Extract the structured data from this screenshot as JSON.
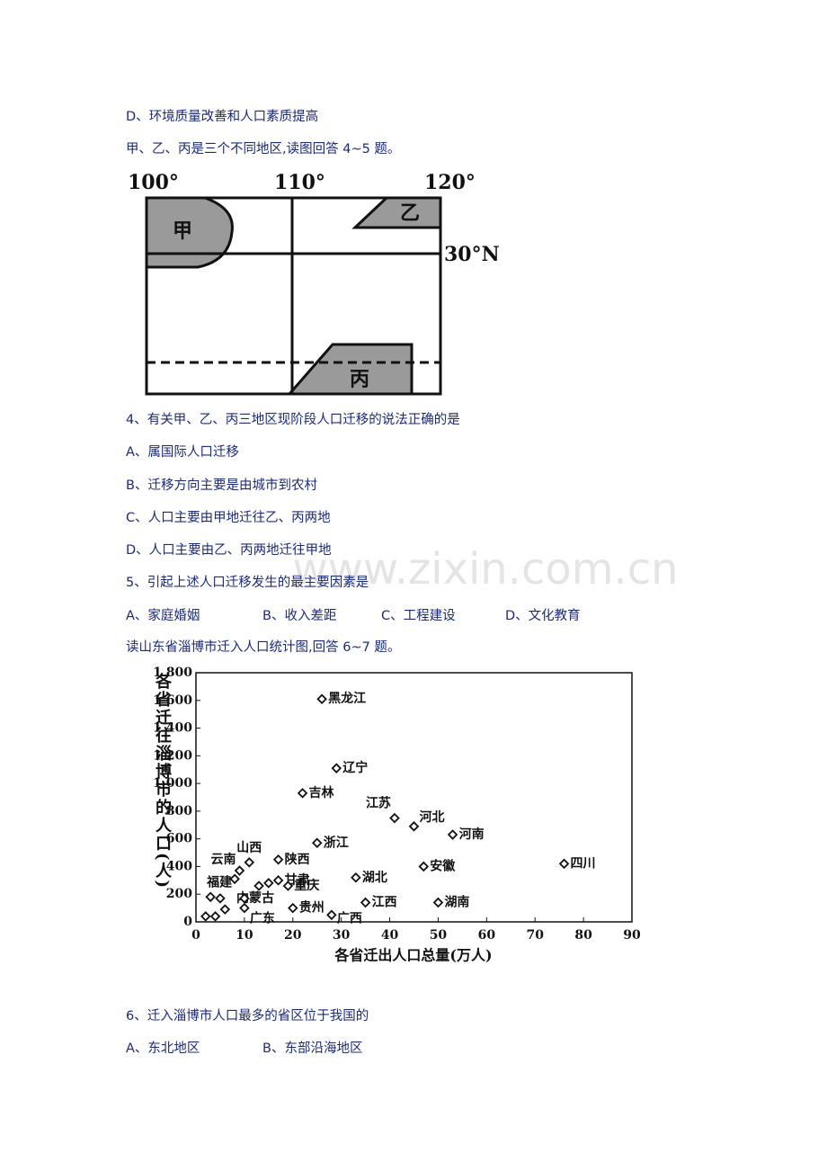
{
  "document": {
    "lines": [
      "D、环境质量改善和人口素质提高",
      "甲、乙、丙是三个不同地区,读图回答 4~5 题。"
    ],
    "q4": {
      "stem": "4、有关甲、乙、丙三地区现阶段人口迁移的说法正确的是",
      "options": [
        "A、属国际人口迁移",
        "B、迁移方向主要是由城市到农村",
        "C、人口主要由甲地迁往乙、丙两地",
        "D、人口主要由乙、丙两地迁往甲地"
      ]
    },
    "q5": {
      "stem": "5、引起上述人口迁移发生的最主要因素是",
      "options": [
        "A、家庭婚姻",
        "B、收入差距",
        "C、工程建设",
        "D、文化教育"
      ]
    },
    "intro2": "读山东省淄博市迁入人口统计图,回答 6~7 题。",
    "q6": {
      "stem": "6、迁入淄博市人口最多的省区位于我国的",
      "options": [
        "A、东北地区",
        "B、东部沿海地区"
      ]
    },
    "watermark": "www.zixin.com.cn"
  },
  "map": {
    "longitudes": [
      "100°",
      "110°",
      "120°"
    ],
    "latitude": "30°N",
    "regions": [
      "甲",
      "乙",
      "丙"
    ]
  },
  "chart_data": {
    "type": "scatter",
    "x_label": "各省迁出人口总量(万人)",
    "y_label": "各省迁往淄博市的人口(人)",
    "x": [
      26,
      29,
      22,
      41,
      45,
      53,
      25,
      76,
      47,
      33,
      11,
      17,
      9,
      17,
      19,
      13,
      3,
      10,
      20,
      28,
      35,
      50,
      2,
      4,
      6,
      5,
      8,
      10,
      15
    ],
    "y": [
      1610,
      1110,
      930,
      750,
      690,
      630,
      570,
      420,
      400,
      320,
      430,
      450,
      370,
      300,
      260,
      260,
      180,
      100,
      100,
      50,
      140,
      140,
      40,
      40,
      90,
      170,
      310,
      170,
      280
    ],
    "labels": [
      "黑龙江",
      "辽宁",
      "吉林",
      "江苏",
      "河北",
      "河南",
      "浙江",
      "四川",
      "安徽",
      "湖北",
      "山西",
      "陕西",
      "云南",
      "甘肃",
      "重庆",
      "内蒙古",
      "福建",
      "广东",
      "贵州",
      "广西",
      "江西",
      "湖南",
      null,
      null,
      null,
      null,
      null,
      null,
      null
    ],
    "xlim": [
      0,
      90
    ],
    "ylim": [
      0,
      1800
    ],
    "xticks": [
      0,
      10,
      20,
      30,
      40,
      50,
      60,
      70,
      80,
      90
    ],
    "yticks": [
      0,
      200,
      400,
      600,
      800,
      {
        "value": 1000,
        "label": "1 000"
      },
      {
        "value": 1200,
        "label": "1 200"
      },
      {
        "value": 1400,
        "label": "1 400"
      },
      {
        "value": 1600,
        "label": "1 600"
      },
      {
        "value": 1800,
        "label": "1 800"
      }
    ]
  }
}
